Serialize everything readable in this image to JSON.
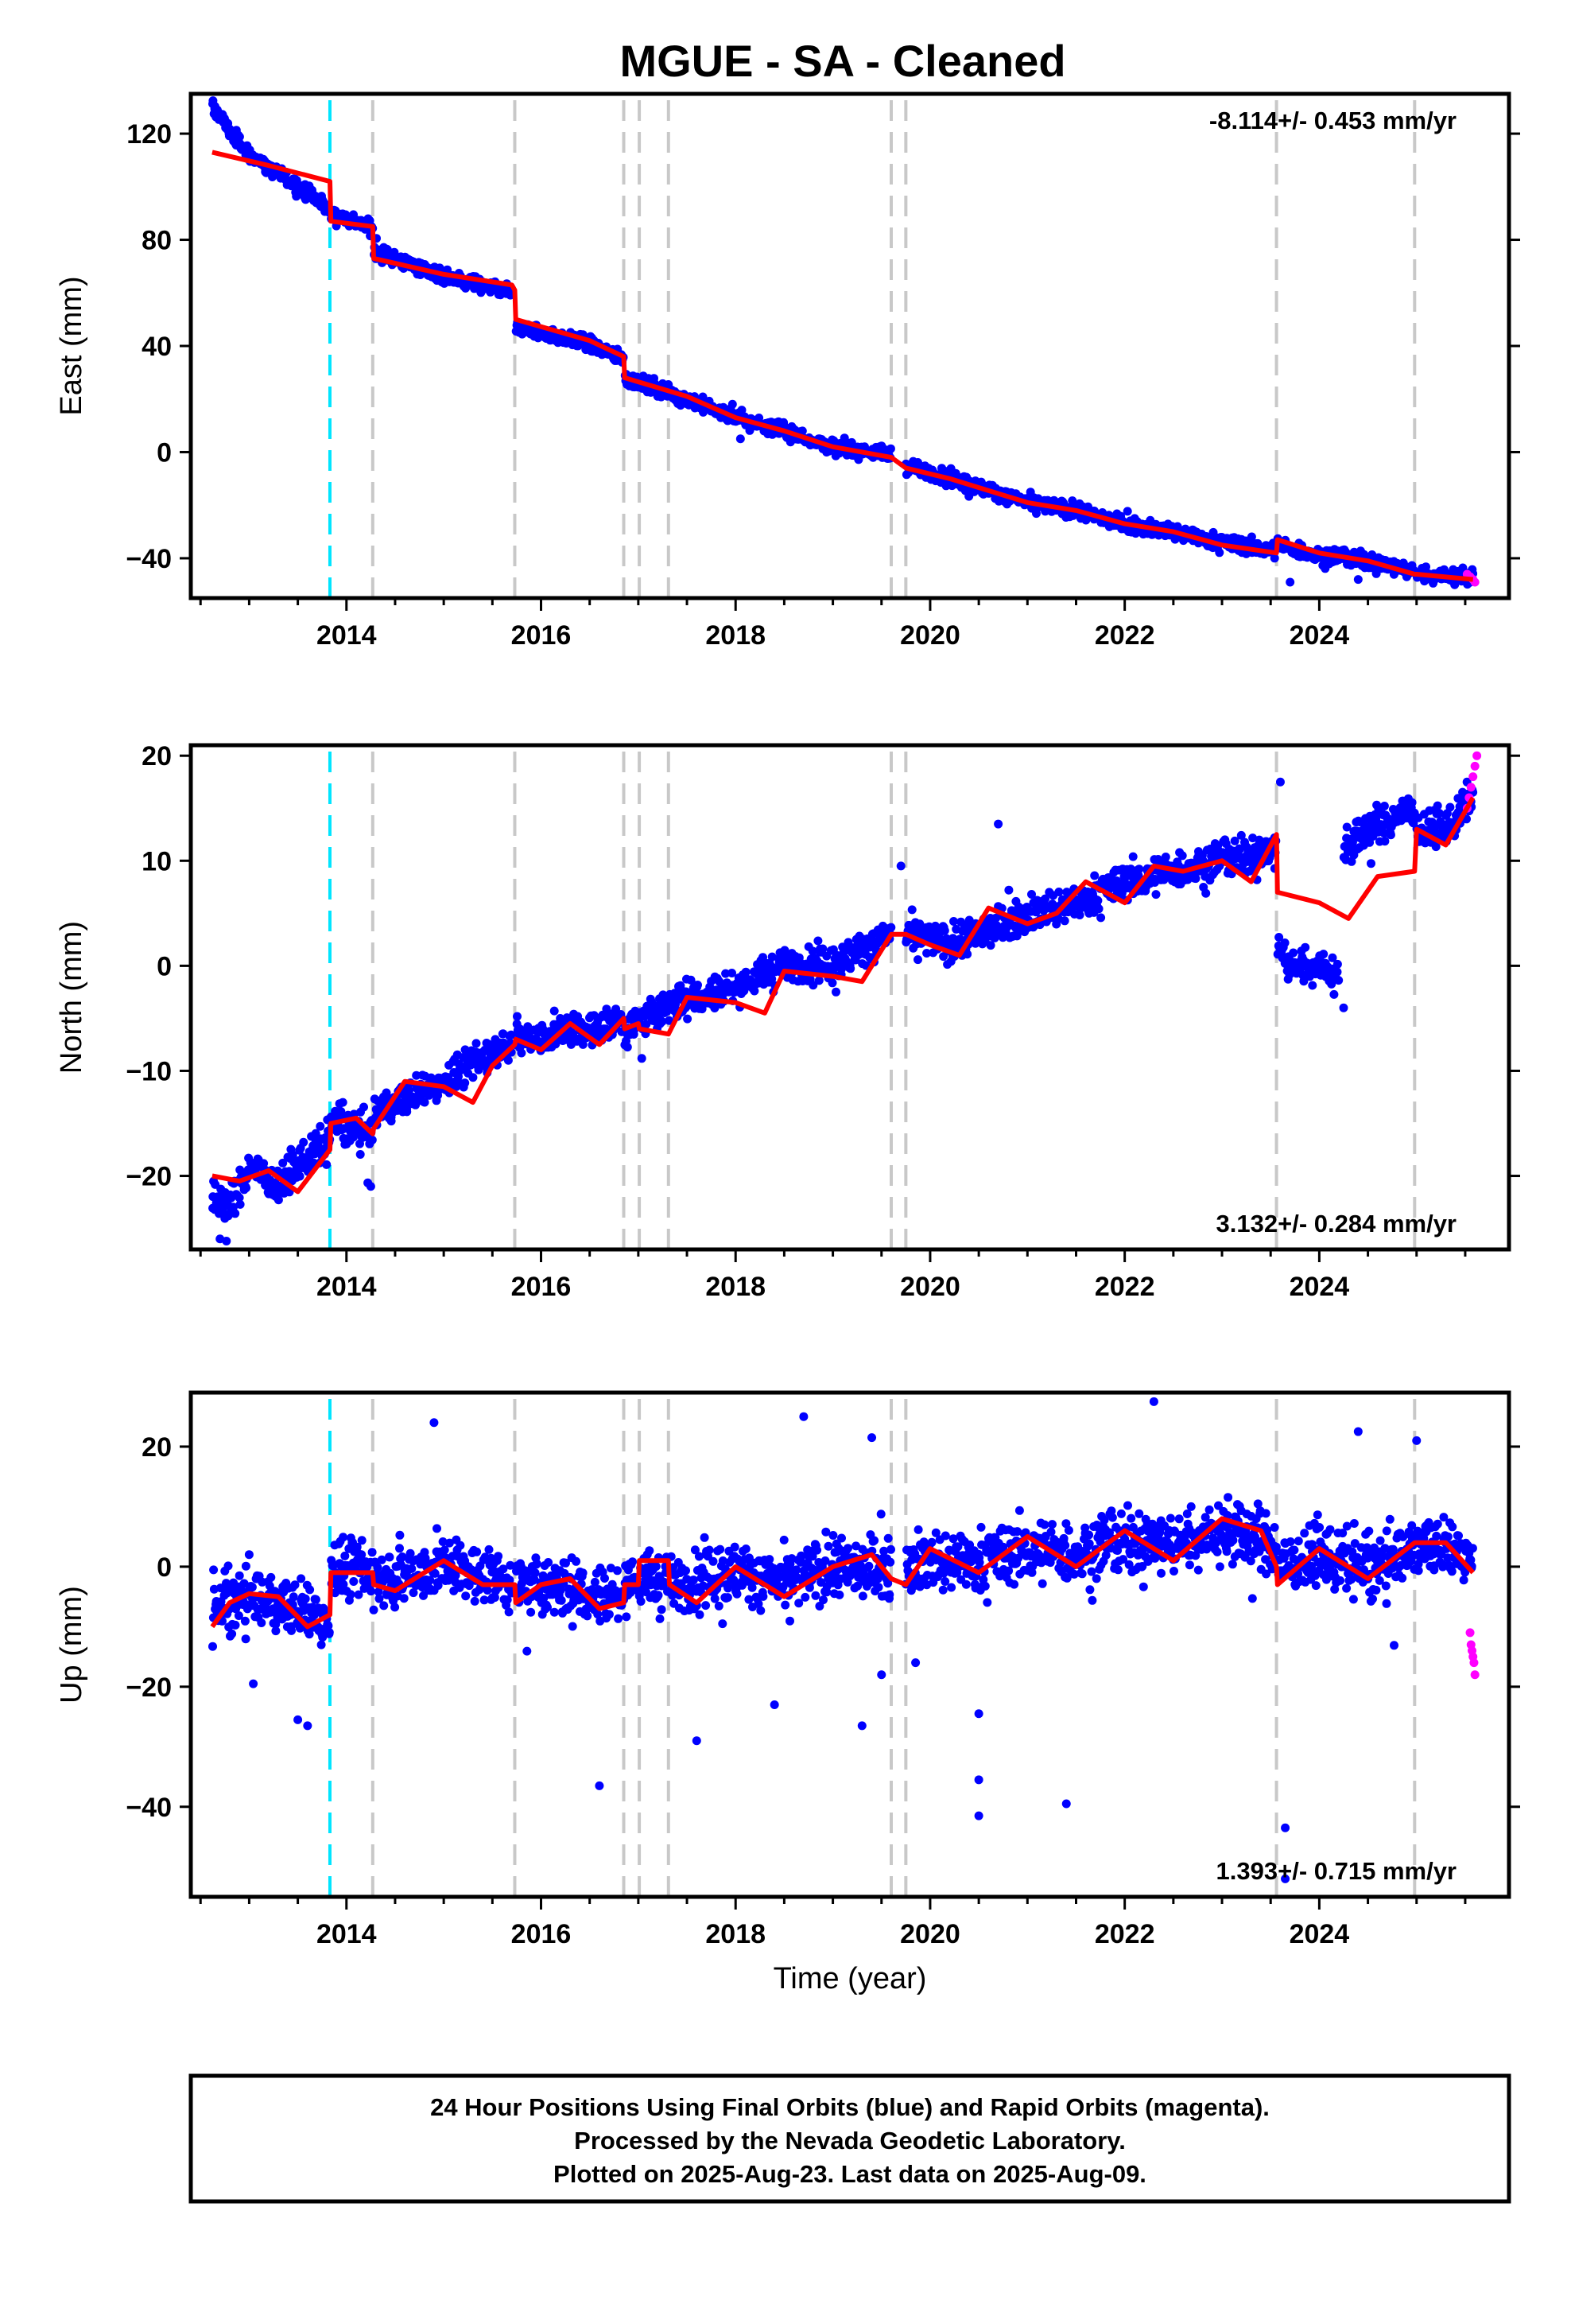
{
  "title": "MGUE  - SA - Cleaned",
  "footer": {
    "lines": [
      "24 Hour Positions Using Final Orbits (blue) and Rapid Orbits (magenta).",
      "Processed by the Nevada Geodetic Laboratory.",
      "Plotted on 2025-Aug-23. Last data on 2025-Aug-09."
    ]
  },
  "colors": {
    "final_orbits": "#0000ff",
    "rapid_orbits": "#ff00ff",
    "model": "#ff0000",
    "antenna_change": "#00e5ff",
    "equipment_change": "#c8c8c8"
  },
  "chart_data": [
    {
      "type": "scatter",
      "component": "east",
      "ylabel": "East (mm)",
      "xlabel": "",
      "xlim": [
        2012.4,
        2025.95
      ],
      "ylim": [
        -55,
        135
      ],
      "xticks": [
        2014,
        2016,
        2018,
        2020,
        2022,
        2024
      ],
      "yticks": [
        -40,
        0,
        40,
        80,
        120
      ],
      "rate_label": "-8.114+/- 0.453 mm/yr",
      "rate_position": "top-right",
      "steps": [
        2013.83,
        2014.27,
        2015.73,
        2016.85,
        2017.01,
        2017.31,
        2019.6,
        2019.75,
        2023.56,
        2024.98
      ],
      "model_line": {
        "x": [
          2012.62,
          2013.2,
          2013.83,
          2013.84,
          2014.27,
          2014.28,
          2015.0,
          2015.7,
          2015.73,
          2015.74,
          2016.5,
          2016.85,
          2016.86,
          2017.5,
          2018.0,
          2018.5,
          2019.0,
          2019.6,
          2019.75,
          2020.2,
          2021.0,
          2021.5,
          2022.0,
          2022.5,
          2023.0,
          2023.56,
          2023.57,
          2024.0,
          2024.5,
          2024.98,
          2025.0,
          2025.58
        ],
        "y": [
          113,
          108,
          102,
          87,
          85,
          73,
          67,
          63,
          61,
          50,
          42,
          36,
          28,
          21,
          13,
          8,
          2,
          -2,
          -6,
          -10,
          -19,
          -22,
          -27,
          -30,
          -35,
          -38,
          -33,
          -38,
          -41,
          -46,
          -46,
          -48
        ]
      },
      "final_orbits": {
        "segments": [
          {
            "x": [
              2012.62,
              2012.7,
              2012.8,
              2013.0,
              2013.3,
              2013.6,
              2013.83
            ],
            "y": [
              130,
              127,
              121,
              112,
              105,
              98,
              91
            ]
          },
          {
            "x": [
              2013.84,
              2014.27
            ],
            "y": [
              90,
              84
            ]
          },
          {
            "x": [
              2014.28,
              2015.0,
              2015.7
            ],
            "y": [
              76,
              66,
              60
            ]
          },
          {
            "x": [
              2015.74,
              2016.5,
              2016.85
            ],
            "y": [
              47,
              41,
              35
            ]
          },
          {
            "x": [
              2016.86,
              2017.5,
              2018.0,
              2018.5,
              2019.0,
              2019.6
            ],
            "y": [
              28,
              20,
              13,
              8,
              2,
              -1
            ]
          },
          {
            "x": [
              2019.75,
              2020.2,
              2021.0,
              2021.5,
              2022.0,
              2022.5,
              2023.0,
              2023.56
            ],
            "y": [
              -5,
              -10,
              -19,
              -22,
              -27,
              -30,
              -34,
              -37
            ]
          },
          {
            "x": [
              2023.57,
              2024.0,
              2024.5,
              2024.98
            ],
            "y": [
              -35,
              -39,
              -41,
              -45
            ]
          },
          {
            "x": [
              2025.0,
              2025.58
            ],
            "y": [
              -46,
              -47
            ]
          }
        ],
        "scatter": 2.5,
        "outliers": [
          [
            2018.05,
            5
          ],
          [
            2023.7,
            -49
          ],
          [
            2024.4,
            -48
          ],
          [
            2019.2,
            1
          ]
        ]
      },
      "rapid_orbits": {
        "x": [
          2025.52,
          2025.55,
          2025.58,
          2025.6
        ],
        "y": [
          -46,
          -47,
          -48,
          -49
        ]
      }
    },
    {
      "type": "scatter",
      "component": "north",
      "ylabel": "North (mm)",
      "xlabel": "",
      "xlim": [
        2012.4,
        2025.95
      ],
      "ylim": [
        -27,
        21
      ],
      "xticks": [
        2014,
        2016,
        2018,
        2020,
        2022,
        2024
      ],
      "yticks": [
        -20,
        -10,
        0,
        10,
        20
      ],
      "rate_label": "3.132+/- 0.284 mm/yr",
      "rate_position": "bottom-right",
      "steps": [
        2013.83,
        2014.27,
        2015.73,
        2016.85,
        2017.01,
        2017.31,
        2019.6,
        2019.75,
        2023.56,
        2024.98
      ],
      "model_line": {
        "x": [
          2012.62,
          2012.9,
          2013.2,
          2013.5,
          2013.83,
          2013.84,
          2014.1,
          2014.27,
          2014.28,
          2014.6,
          2015.0,
          2015.3,
          2015.5,
          2015.73,
          2015.74,
          2016.0,
          2016.3,
          2016.6,
          2016.85,
          2016.86,
          2017.0,
          2017.01,
          2017.31,
          2017.5,
          2018.0,
          2018.3,
          2018.5,
          2019.0,
          2019.3,
          2019.6,
          2019.75,
          2020.0,
          2020.3,
          2020.6,
          2021.0,
          2021.3,
          2021.6,
          2022.0,
          2022.3,
          2022.6,
          2023.0,
          2023.3,
          2023.56,
          2023.57,
          2024.0,
          2024.3,
          2024.6,
          2024.98,
          2025.0,
          2025.3,
          2025.58
        ],
        "y": [
          -20,
          -20.5,
          -19.5,
          -21.5,
          -17.5,
          -15,
          -14.5,
          -16,
          -15.5,
          -11,
          -11.5,
          -13,
          -9.5,
          -7.5,
          -7,
          -8,
          -5.5,
          -7.5,
          -5,
          -6,
          -5.5,
          -6,
          -6.5,
          -3,
          -3.5,
          -4.5,
          -0.5,
          -1,
          -1.5,
          3,
          3,
          2,
          1,
          5.5,
          4,
          5,
          8,
          6,
          9.5,
          9,
          10,
          8,
          12.5,
          7,
          6,
          4.5,
          8.5,
          9,
          13,
          11.5,
          16
        ]
      },
      "final_orbits": {
        "segments": [
          {
            "x": [
              2012.62,
              2012.8,
              2013.0,
              2013.3,
              2013.6,
              2013.83
            ],
            "y": [
              -22,
              -23,
              -19,
              -21,
              -18,
              -17
            ]
          },
          {
            "x": [
              2013.84,
              2014.27
            ],
            "y": [
              -15,
              -16
            ]
          },
          {
            "x": [
              2014.28,
              2015.0,
              2015.7
            ],
            "y": [
              -14,
              -11,
              -7
            ]
          },
          {
            "x": [
              2015.74,
              2016.5,
              2016.85
            ],
            "y": [
              -7,
              -6,
              -5
            ]
          },
          {
            "x": [
              2016.86,
              2017.5,
              2018.0,
              2018.5,
              2019.0,
              2019.6
            ],
            "y": [
              -6,
              -3,
              -2,
              0,
              0,
              3
            ]
          },
          {
            "x": [
              2019.75,
              2020.2,
              2021.0,
              2021.5,
              2022.0,
              2022.5,
              2023.0,
              2023.56
            ],
            "y": [
              3,
              2,
              5,
              6,
              8,
              9,
              10,
              11
            ]
          },
          {
            "x": [
              2023.57,
              2023.7,
              2024.0,
              2024.2
            ],
            "y": [
              2,
              0,
              0,
              -1
            ]
          },
          {
            "x": [
              2024.25,
              2024.5,
              2024.98
            ],
            "y": [
              11,
              13,
              15
            ]
          },
          {
            "x": [
              2025.0,
              2025.3,
              2025.58
            ],
            "y": [
              13,
              13,
              16
            ]
          }
        ],
        "scatter": 1.5,
        "outliers": [
          [
            2020.7,
            13.5
          ],
          [
            2019.7,
            9.5
          ],
          [
            2023.6,
            17.5
          ],
          [
            2024.25,
            -4
          ],
          [
            2014.25,
            -21
          ],
          [
            2012.7,
            -26
          ]
        ]
      },
      "rapid_orbits": {
        "x": [
          2025.52,
          2025.54,
          2025.56,
          2025.58,
          2025.6,
          2025.62
        ],
        "y": [
          15,
          16,
          17,
          18,
          19,
          20
        ]
      }
    },
    {
      "type": "scatter",
      "component": "up",
      "ylabel": "Up (mm)",
      "xlabel": "Time (year)",
      "xlim": [
        2012.4,
        2025.95
      ],
      "ylim": [
        -55,
        29
      ],
      "xticks": [
        2014,
        2016,
        2018,
        2020,
        2022,
        2024
      ],
      "yticks": [
        -40,
        -20,
        0,
        20
      ],
      "rate_label": "1.393+/- 0.715 mm/yr",
      "rate_position": "bottom-right",
      "steps": [
        2013.83,
        2014.27,
        2015.73,
        2016.85,
        2017.01,
        2017.31,
        2019.6,
        2019.75,
        2023.56,
        2024.98
      ],
      "model_line": {
        "x": [
          2012.62,
          2012.8,
          2013.0,
          2013.3,
          2013.6,
          2013.83,
          2013.84,
          2014.0,
          2014.27,
          2014.28,
          2014.5,
          2015.0,
          2015.4,
          2015.73,
          2015.74,
          2016.0,
          2016.3,
          2016.6,
          2016.85,
          2016.86,
          2017.0,
          2017.01,
          2017.31,
          2017.32,
          2017.6,
          2018.0,
          2018.5,
          2019.0,
          2019.4,
          2019.6,
          2019.75,
          2020.0,
          2020.5,
          2021.0,
          2021.5,
          2022.0,
          2022.5,
          2023.0,
          2023.4,
          2023.56,
          2023.57,
          2024.0,
          2024.5,
          2024.98,
          2025.0,
          2025.3,
          2025.58
        ],
        "y": [
          -10,
          -6,
          -4.5,
          -5,
          -10,
          -8,
          -1,
          -1,
          -1,
          -3,
          -4,
          1,
          -3,
          -3,
          -6,
          -3,
          -2,
          -7,
          -6,
          -3,
          -3,
          1,
          1,
          -3,
          -6,
          0,
          -5,
          0,
          2,
          -2,
          -3,
          3,
          -1,
          5,
          0,
          6,
          1,
          8,
          6,
          0,
          -3,
          3,
          -2,
          4,
          4,
          4,
          -1
        ]
      },
      "final_orbits": {
        "segments": [
          {
            "x": [
              2012.62,
              2013.0,
              2013.5,
              2013.83
            ],
            "y": [
              -8,
              -5,
              -7,
              -9
            ]
          },
          {
            "x": [
              2013.84,
              2014.27
            ],
            "y": [
              0,
              -1
            ]
          },
          {
            "x": [
              2014.28,
              2015.0,
              2015.7
            ],
            "y": [
              -2,
              0,
              -2
            ]
          },
          {
            "x": [
              2015.74,
              2016.5,
              2016.85
            ],
            "y": [
              -3,
              -4,
              -5
            ]
          },
          {
            "x": [
              2016.86,
              2017.5,
              2018.0,
              2018.5,
              2019.0,
              2019.6
            ],
            "y": [
              -2,
              -3,
              -1,
              -3,
              0,
              0
            ]
          },
          {
            "x": [
              2019.75,
              2020.5,
              2021.0,
              2021.5,
              2022.0,
              2022.5,
              2023.0,
              2023.56
            ],
            "y": [
              1,
              1,
              3,
              2,
              4,
              4,
              6,
              4
            ]
          },
          {
            "x": [
              2023.57,
              2024.0,
              2024.5,
              2024.98
            ],
            "y": [
              0,
              2,
              -1,
              3
            ]
          },
          {
            "x": [
              2025.0,
              2025.58
            ],
            "y": [
              4,
              2
            ]
          }
        ],
        "scatter": 4.5,
        "outliers": [
          [
            2014.9,
            24
          ],
          [
            2018.7,
            25
          ],
          [
            2019.4,
            21.5
          ],
          [
            2022.3,
            27.5
          ],
          [
            2020.5,
            -24.5
          ],
          [
            2020.5,
            -35.5
          ],
          [
            2020.5,
            -41.5
          ],
          [
            2021.4,
            -39.5
          ],
          [
            2016.6,
            -36.5
          ],
          [
            2017.6,
            -29
          ],
          [
            2019.3,
            -26.5
          ],
          [
            2013.5,
            -25.5
          ],
          [
            2013.6,
            -26.5
          ],
          [
            2023.65,
            -43.5
          ],
          [
            2023.65,
            -52
          ],
          [
            2019.85,
            -16
          ],
          [
            2019.5,
            -18
          ],
          [
            2018.4,
            -23
          ],
          [
            2024.4,
            22.5
          ],
          [
            2025.0,
            21
          ]
        ]
      },
      "rapid_orbits": {
        "x": [
          2025.55,
          2025.56,
          2025.57,
          2025.58,
          2025.59,
          2025.6
        ],
        "y": [
          -11,
          -13,
          -14,
          -15,
          -16,
          -18
        ]
      }
    }
  ]
}
